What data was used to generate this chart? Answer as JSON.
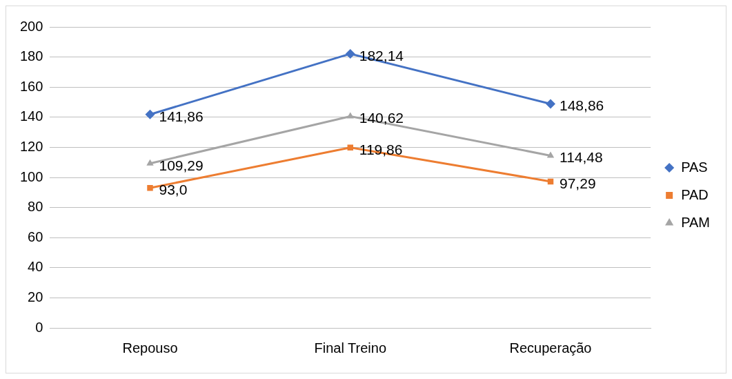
{
  "chart_data": {
    "type": "line",
    "categories": [
      "Repouso",
      "Final Treino",
      "Recuperação"
    ],
    "series": [
      {
        "name": "PAS",
        "color": "#4472c4",
        "marker": "diamond",
        "values": [
          141.86,
          182.14,
          148.86
        ],
        "value_labels": [
          "141,86",
          "182,14",
          "148,86"
        ]
      },
      {
        "name": "PAD",
        "color": "#ed7d31",
        "marker": "square",
        "values": [
          93.0,
          119.86,
          97.29
        ],
        "value_labels": [
          "93,0",
          "119,86",
          "97,29"
        ]
      },
      {
        "name": "PAM",
        "color": "#a5a5a5",
        "marker": "triangle",
        "values": [
          109.29,
          140.62,
          114.48
        ],
        "value_labels": [
          "109,29",
          "140,62",
          "114,48"
        ]
      }
    ],
    "ylim": [
      0,
      200
    ],
    "yticks": [
      0,
      20,
      40,
      60,
      80,
      100,
      120,
      140,
      160,
      180,
      200
    ],
    "grid": "y",
    "legend": "right",
    "line_style": "solid"
  }
}
